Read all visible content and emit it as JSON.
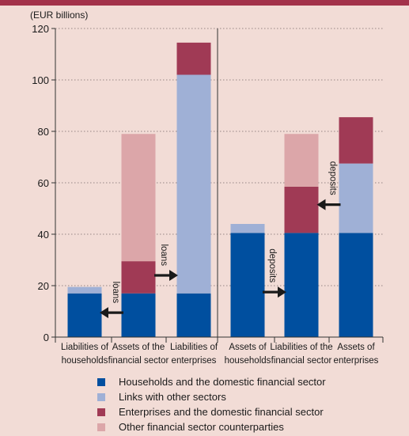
{
  "chart_data": {
    "type": "bar",
    "stacked": true,
    "ylabel": "(EUR billions)",
    "ylim": [
      0,
      120
    ],
    "yticks": [
      0,
      20,
      40,
      60,
      80,
      100,
      120
    ],
    "grid": true,
    "categories": [
      [
        "Liabilities of",
        "households"
      ],
      [
        "Assets of the",
        "financial sector"
      ],
      [
        "Liabilities of",
        "enterprises"
      ],
      [
        "Assets of",
        "households"
      ],
      [
        "Liabilities of the",
        "financial sector"
      ],
      [
        "Assets of",
        "enterprises"
      ]
    ],
    "series": [
      {
        "name": "Households and the domestic financial sector",
        "color": "#004f9f",
        "values": [
          17,
          17,
          17,
          40.5,
          40.5,
          40.5
        ]
      },
      {
        "name": "Links with other sectors",
        "color": "#9fb0d6",
        "values": [
          2.5,
          0,
          85,
          3.5,
          0,
          27
        ]
      },
      {
        "name": "Enterprises and the domestic financial sector",
        "color": "#a03a55",
        "values": [
          0,
          12.5,
          12.5,
          0,
          18,
          18
        ]
      },
      {
        "name": "Other financial sector counterparties",
        "color": "#dca6a9",
        "values": [
          0,
          49.5,
          0,
          0,
          20.5,
          0
        ]
      }
    ],
    "annotations": [
      {
        "text": "loans",
        "arrow": "left",
        "y": 9.5,
        "between": [
          0,
          1
        ]
      },
      {
        "text": "loans",
        "arrow": "right",
        "y": 24,
        "between": [
          1,
          2
        ]
      },
      {
        "text": "deposits",
        "arrow": "right",
        "y": 17.5,
        "between": [
          3,
          4
        ]
      },
      {
        "text": "deposits",
        "arrow": "left",
        "y": 51.5,
        "between": [
          4,
          5
        ]
      }
    ],
    "legend_position": "bottom"
  }
}
